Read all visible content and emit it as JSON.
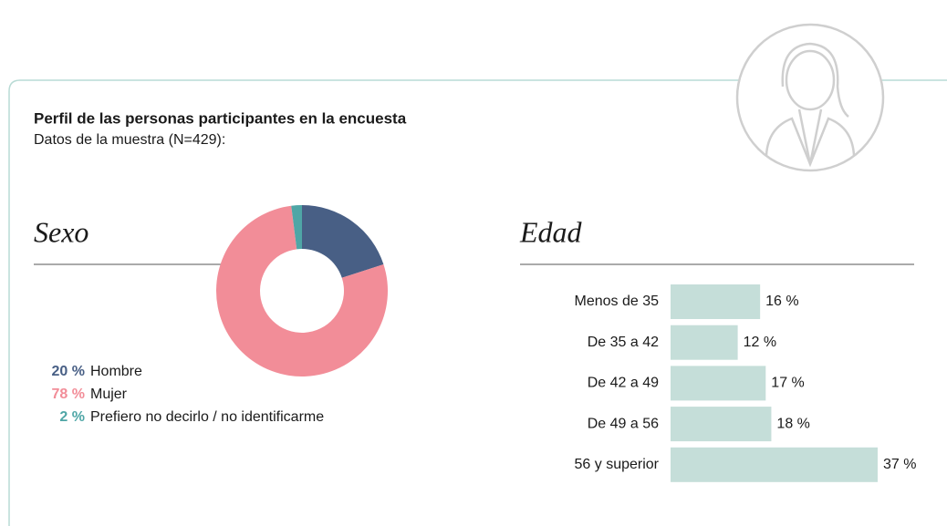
{
  "header": {
    "title": "Perfil de las personas participantes en la encuesta",
    "subtitle": "Datos de la muestra (N=429):"
  },
  "chart_data": [
    {
      "type": "donut",
      "title": "Sexo",
      "categories": [
        "Hombre",
        "Mujer",
        "Prefiero no decirlo / no identificarme"
      ],
      "values": [
        20,
        78,
        2
      ],
      "value_labels": [
        "20 %",
        "78 %",
        "2 %"
      ],
      "colors": [
        "#485f85",
        "#f28d98",
        "#4fa6a6"
      ]
    },
    {
      "type": "bar",
      "title": "Edad",
      "categories": [
        "Menos de 35",
        "De 35 a 42",
        "De 42 a 49",
        "De 49 a 56",
        "56 y superior"
      ],
      "values": [
        16,
        12,
        17,
        18,
        37
      ],
      "value_labels": [
        "16 %",
        "12 %",
        "17 %",
        "18 %",
        "37 %"
      ],
      "color": "#c5ded9"
    }
  ]
}
